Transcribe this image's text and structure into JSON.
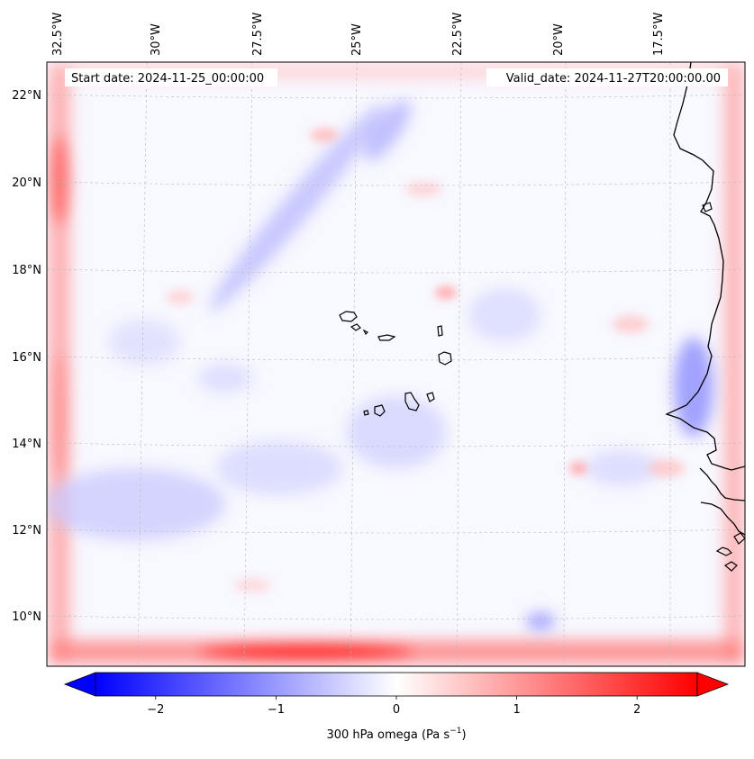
{
  "map": {
    "start_date": "Start date: 2024-11-25_00:00:00",
    "valid_date": "Valid_date: 2024-11-27T20:00:00.00",
    "lon_labels": [
      "32.5°W",
      "30°W",
      "27.5°W",
      "25°W",
      "22.5°W",
      "20°W",
      "17.5°W"
    ],
    "lat_labels": [
      "22°N",
      "20°N",
      "18°N",
      "16°N",
      "14°N",
      "12°N",
      "10°N"
    ]
  },
  "colorbar": {
    "label": "300 hPa omega (Pa s",
    "label_exp": "−1",
    "label_close": ")",
    "ticks": [
      "−2",
      "−1",
      "0",
      "1",
      "2"
    ],
    "tick_values": [
      -2,
      -1,
      0,
      1,
      2
    ],
    "vmin": -2.5,
    "vmax": 2.5,
    "cmap": "bwr",
    "colors": {
      "negative": "#0000ff",
      "zero": "#ffffff",
      "positive": "#ff0000"
    }
  },
  "colors": {
    "field_background": "#f8f8ff",
    "gridline": "#bbbbbb",
    "coastline": "#000000",
    "label_box": "#ffffff"
  }
}
